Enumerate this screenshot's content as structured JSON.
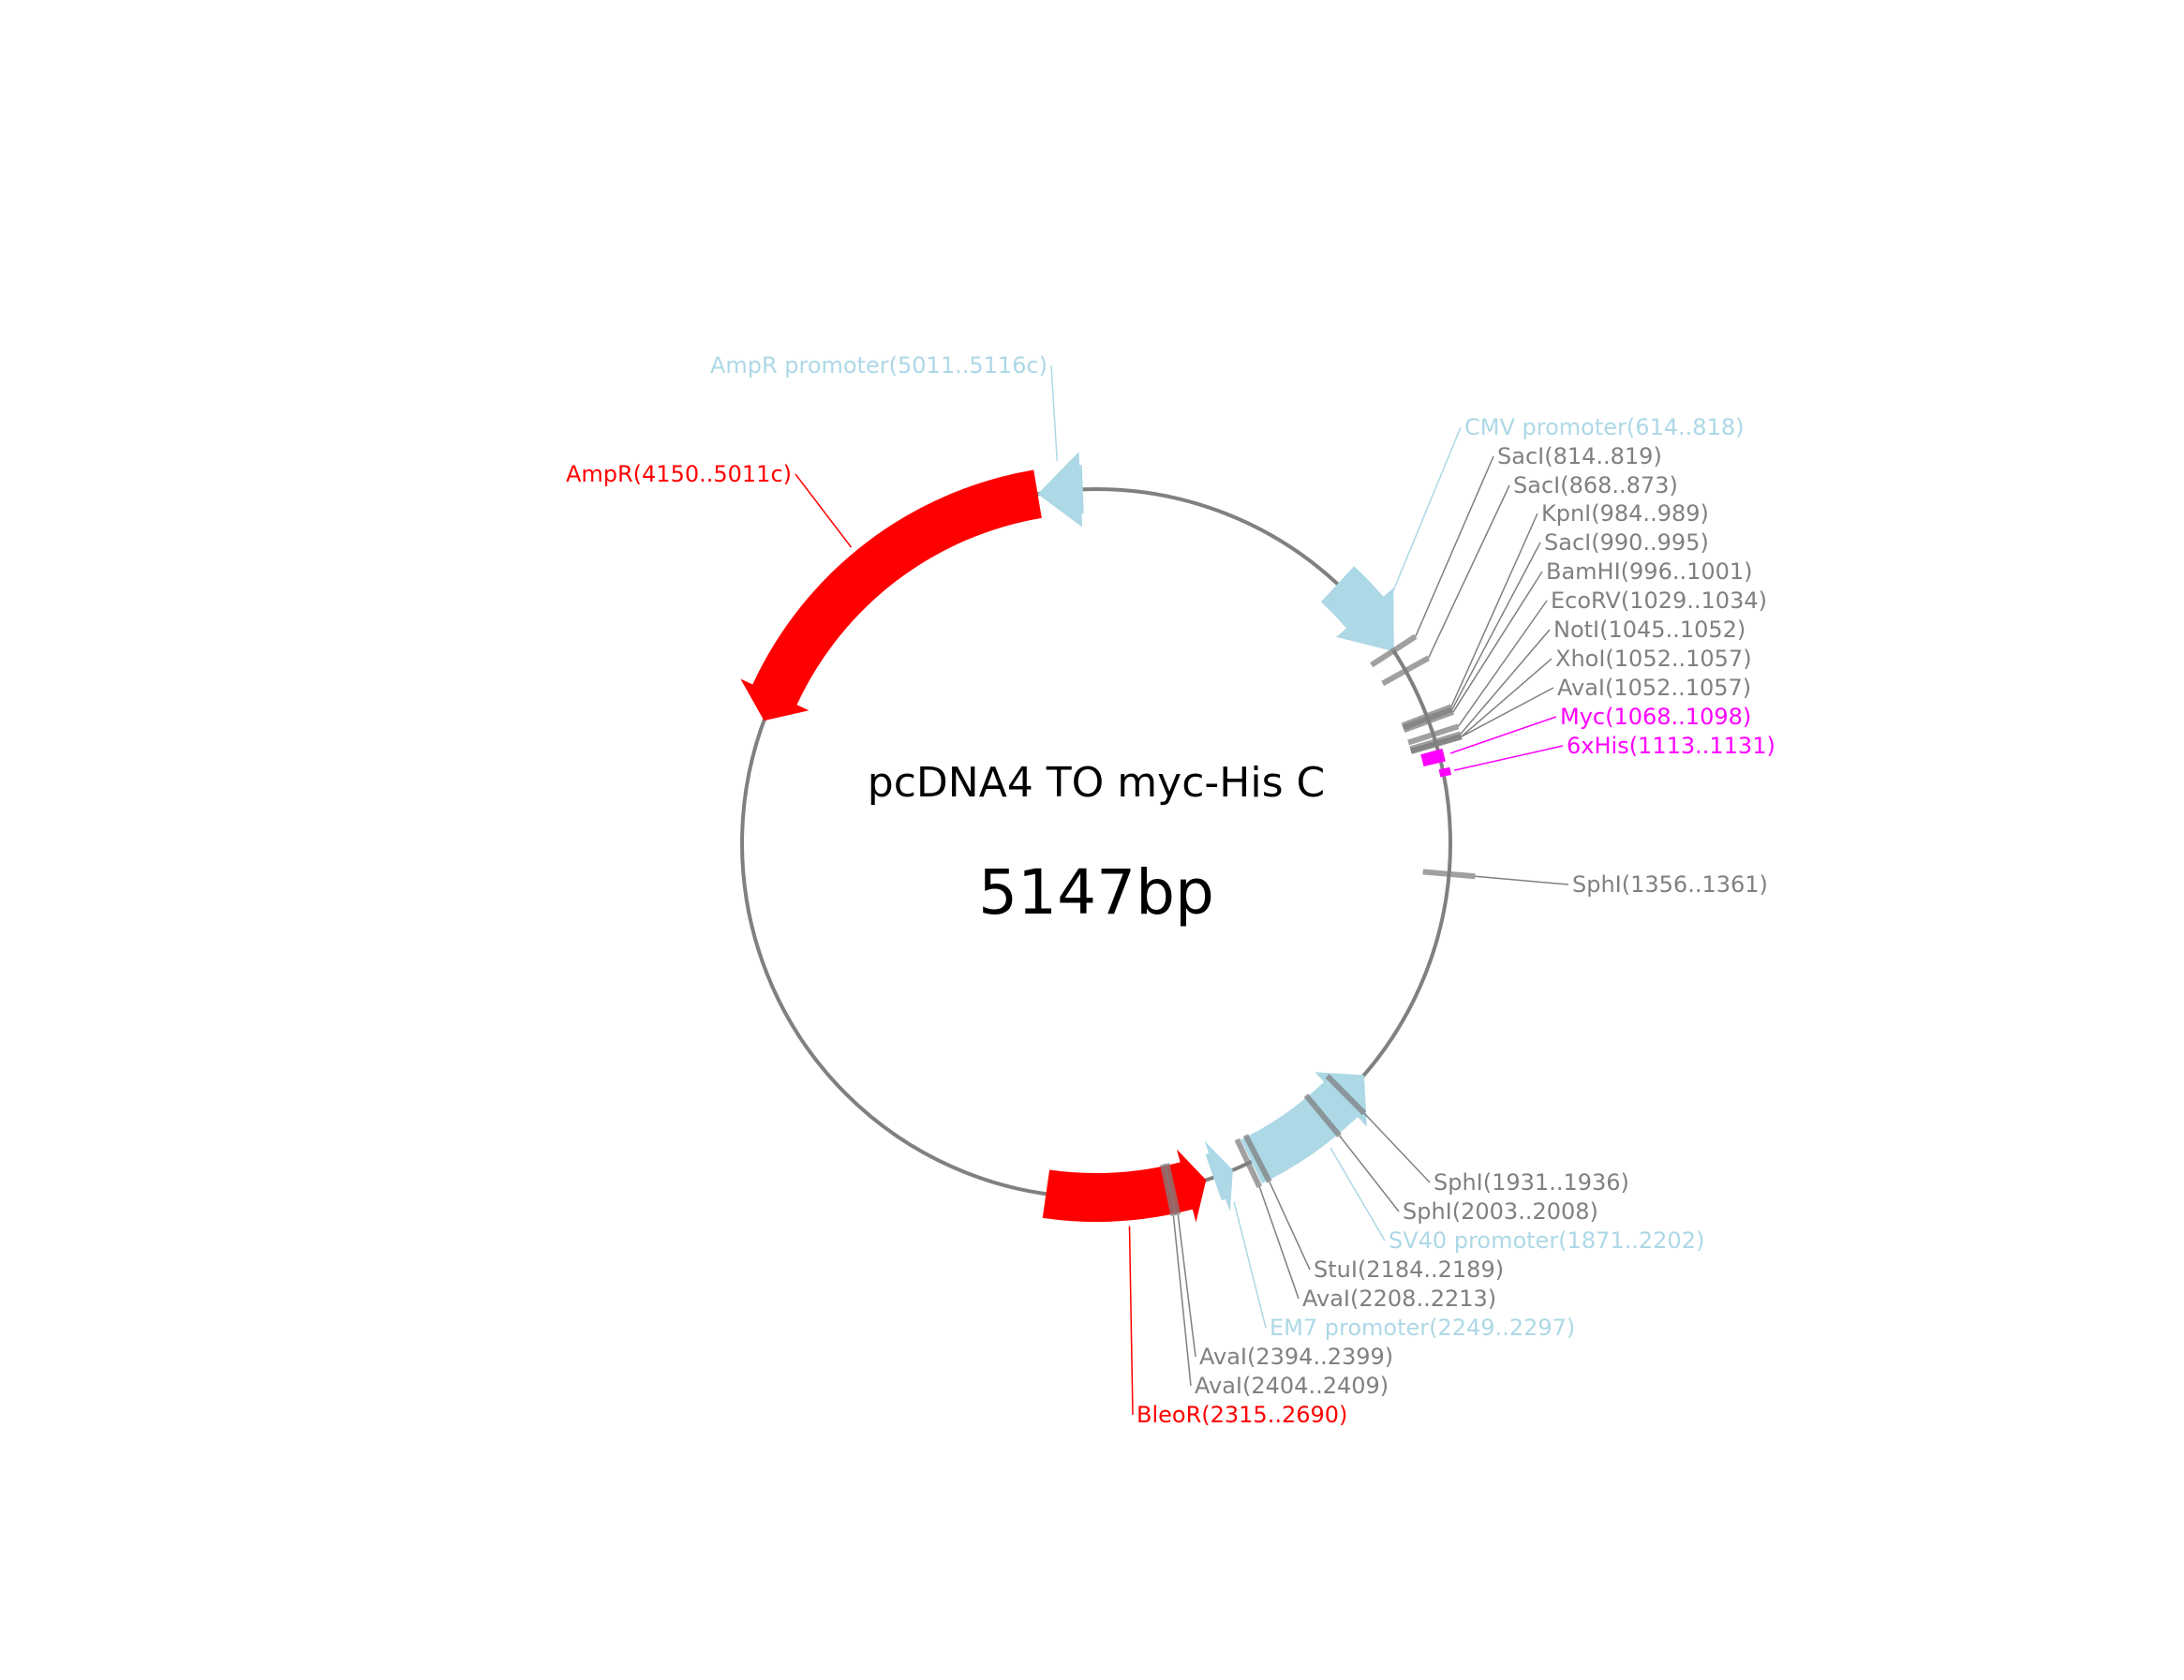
{
  "plasmid": {
    "name": "pcDNA4 TO myc-His C",
    "length_label": "5147bp",
    "length_bp": 5147
  },
  "colors": {
    "backbone": "#808080",
    "promoter": "#add8e6",
    "resistance": "#ff0000",
    "tag": "#ff00ff",
    "site": "#808080"
  },
  "features": [
    {
      "id": "ampr-promoter",
      "label": "AmpR promoter(5011..5116c)",
      "start": 5011,
      "end": 5116,
      "strand": -1,
      "kind": "promoter"
    },
    {
      "id": "ampr",
      "label": "AmpR(4150..5011c)",
      "start": 4150,
      "end": 5011,
      "strand": -1,
      "kind": "resistance"
    },
    {
      "id": "cmv-promoter",
      "label": "CMV promoter(614..818)",
      "start": 614,
      "end": 818,
      "strand": 1,
      "kind": "promoter"
    },
    {
      "id": "myc",
      "label": "Myc(1068..1098)",
      "start": 1068,
      "end": 1098,
      "strand": 1,
      "kind": "tag"
    },
    {
      "id": "6xhis",
      "label": "6xHis(1113..1131)",
      "start": 1113,
      "end": 1131,
      "strand": 1,
      "kind": "tag"
    },
    {
      "id": "sv40-promoter",
      "label": "SV40 promoter(1871..2202)",
      "start": 1871,
      "end": 2202,
      "strand": -1,
      "kind": "promoter"
    },
    {
      "id": "em7-promoter",
      "label": "EM7 promoter(2249..2297)",
      "start": 2249,
      "end": 2297,
      "strand": -1,
      "kind": "promoter"
    },
    {
      "id": "bleor",
      "label": "BleoR(2315..2690)",
      "start": 2315,
      "end": 2690,
      "strand": -1,
      "kind": "resistance"
    }
  ],
  "sites": [
    {
      "id": "saci-814",
      "label": "SacI(814..819)",
      "pos": 816
    },
    {
      "id": "saci-868",
      "label": "SacI(868..873)",
      "pos": 870
    },
    {
      "id": "kpni-984",
      "label": "KpnI(984..989)",
      "pos": 986
    },
    {
      "id": "saci-990",
      "label": "SacI(990..995)",
      "pos": 992
    },
    {
      "id": "bamhi-996",
      "label": "BamHI(996..1001)",
      "pos": 998
    },
    {
      "id": "ecorv-1029",
      "label": "EcoRV(1029..1034)",
      "pos": 1031
    },
    {
      "id": "noti-1045",
      "label": "NotI(1045..1052)",
      "pos": 1048
    },
    {
      "id": "xhoi-1052",
      "label": "XhoI(1052..1057)",
      "pos": 1054
    },
    {
      "id": "avai-1052",
      "label": "AvaI(1052..1057)",
      "pos": 1054
    },
    {
      "id": "sphi-1356",
      "label": "SphI(1356..1361)",
      "pos": 1358
    },
    {
      "id": "sphi-1931",
      "label": "SphI(1931..1936)",
      "pos": 1933
    },
    {
      "id": "sphi-2003",
      "label": "SphI(2003..2008)",
      "pos": 2005
    },
    {
      "id": "stui-2184",
      "label": "StuI(2184..2189)",
      "pos": 2186
    },
    {
      "id": "avai-2208",
      "label": "AvaI(2208..2213)",
      "pos": 2210
    },
    {
      "id": "avai-2394",
      "label": "AvaI(2394..2399)",
      "pos": 2396
    },
    {
      "id": "avai-2404",
      "label": "AvaI(2404..2409)",
      "pos": 2406
    }
  ]
}
